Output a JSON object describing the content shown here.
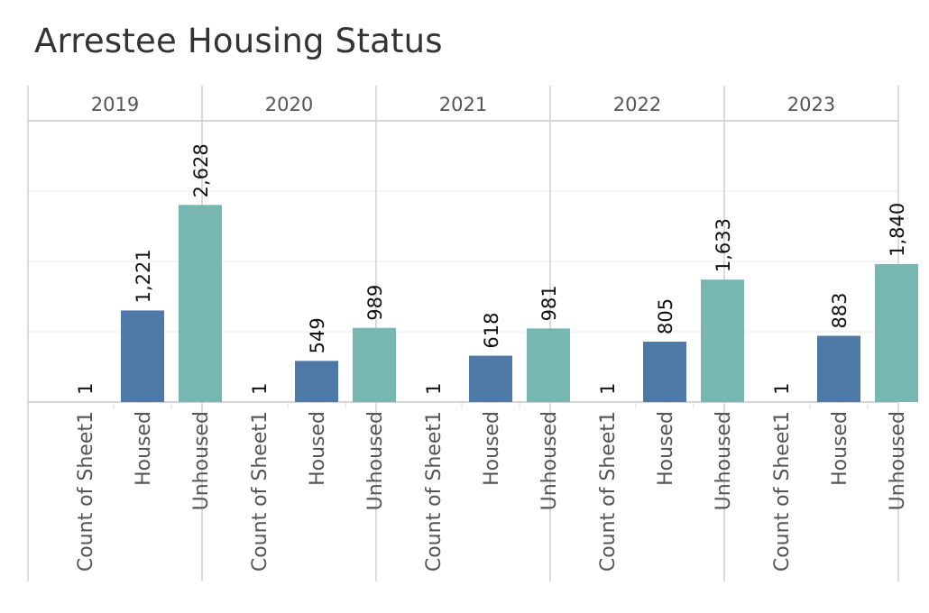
{
  "chart_data": {
    "type": "bar",
    "title": "Arrestee Housing Status",
    "panels": [
      "2019",
      "2020",
      "2021",
      "2022",
      "2023"
    ],
    "categories": [
      "Count of Sheet1",
      "Housed",
      "Unhoused"
    ],
    "values": [
      [
        1,
        1221,
        2628
      ],
      [
        1,
        549,
        989
      ],
      [
        1,
        618,
        981
      ],
      [
        1,
        805,
        1633
      ],
      [
        1,
        883,
        1840
      ]
    ],
    "labels": [
      [
        "1",
        "1,221",
        "2,628"
      ],
      [
        "1",
        "549",
        "989"
      ],
      [
        "1",
        "618",
        "981"
      ],
      [
        "1",
        "805",
        "1,633"
      ],
      [
        "1",
        "883",
        "1,840"
      ]
    ],
    "ylim": [
      0,
      3750
    ],
    "grid": true,
    "colors": {
      "Count of Sheet1": "#4e79a7",
      "Housed": "#4e79a7",
      "Unhoused": "#76b7b2"
    }
  }
}
